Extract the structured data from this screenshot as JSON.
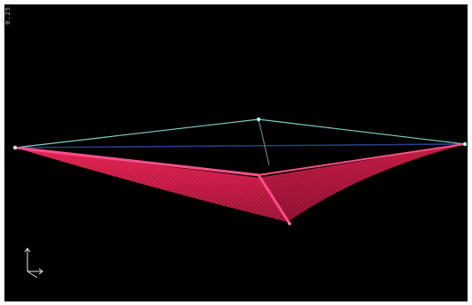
{
  "viewport": {
    "background": "#000000",
    "corner_label": "0.25"
  },
  "model": {
    "name": "",
    "mesh_color": "#e0204e",
    "mesh_line_color": "#ff3f6f",
    "edge_highlight_color": "#ff4f88",
    "top_edge_color": "#7fd2c6",
    "back_edge_color": "#2a3f8a",
    "node_color": "#a8fff0"
  },
  "axis_triad": {
    "icon": "axis-triad-icon",
    "color": "#e8e8e8"
  }
}
